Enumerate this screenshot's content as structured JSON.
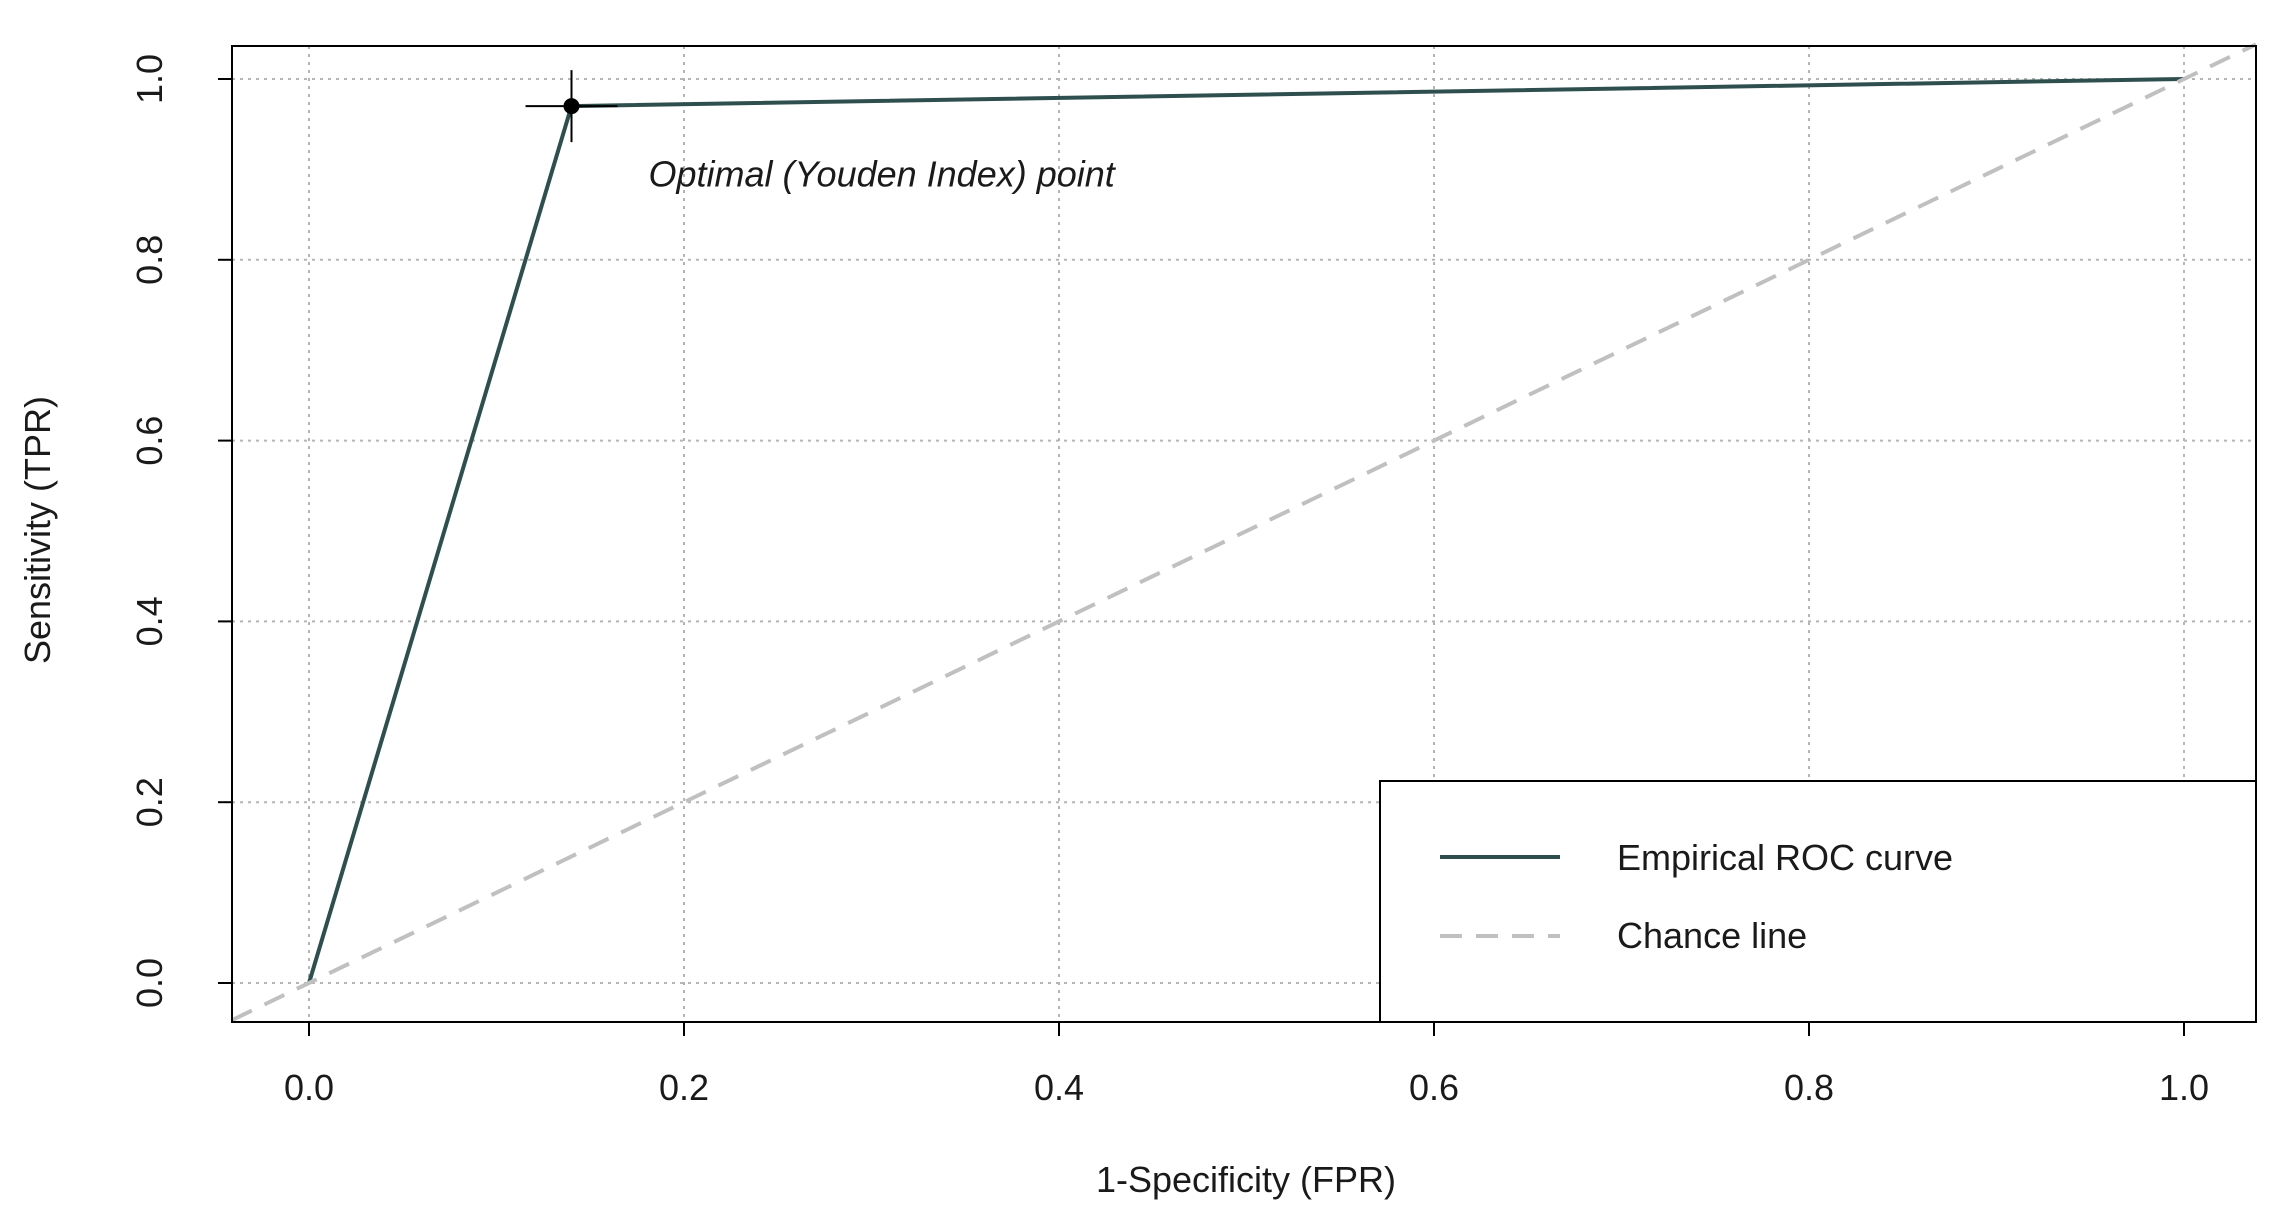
{
  "chart_data": {
    "type": "line",
    "xlabel": "1-Specificity (FPR)",
    "ylabel": "Sensitivity (TPR)",
    "xlim": [
      0.0,
      1.0
    ],
    "ylim": [
      0.0,
      1.0
    ],
    "x_ticks": [
      "0.0",
      "0.2",
      "0.4",
      "0.6",
      "0.8",
      "1.0"
    ],
    "y_ticks": [
      "0.0",
      "0.2",
      "0.4",
      "0.6",
      "0.8",
      "1.0"
    ],
    "grid": true,
    "legend_position": "bottom-right",
    "series": [
      {
        "name": "Empirical ROC curve",
        "style": "solid",
        "color": "#2f4f4f",
        "x": [
          0.0,
          0.14,
          1.0
        ],
        "y": [
          0.0,
          0.97,
          1.0
        ]
      },
      {
        "name": "Chance line",
        "style": "dashed",
        "color": "#c0c0c0",
        "x": [
          0.0,
          1.0
        ],
        "y": [
          0.0,
          1.0
        ]
      }
    ],
    "optimal_point": {
      "x": 0.14,
      "y": 0.97
    },
    "annotations": [
      {
        "text": "Optimal (Youden Index) point",
        "x": 0.18,
        "y": 0.87
      }
    ],
    "colors": {
      "grid": "#b5b5b5",
      "frame": "#000000",
      "point": "#000000"
    }
  }
}
